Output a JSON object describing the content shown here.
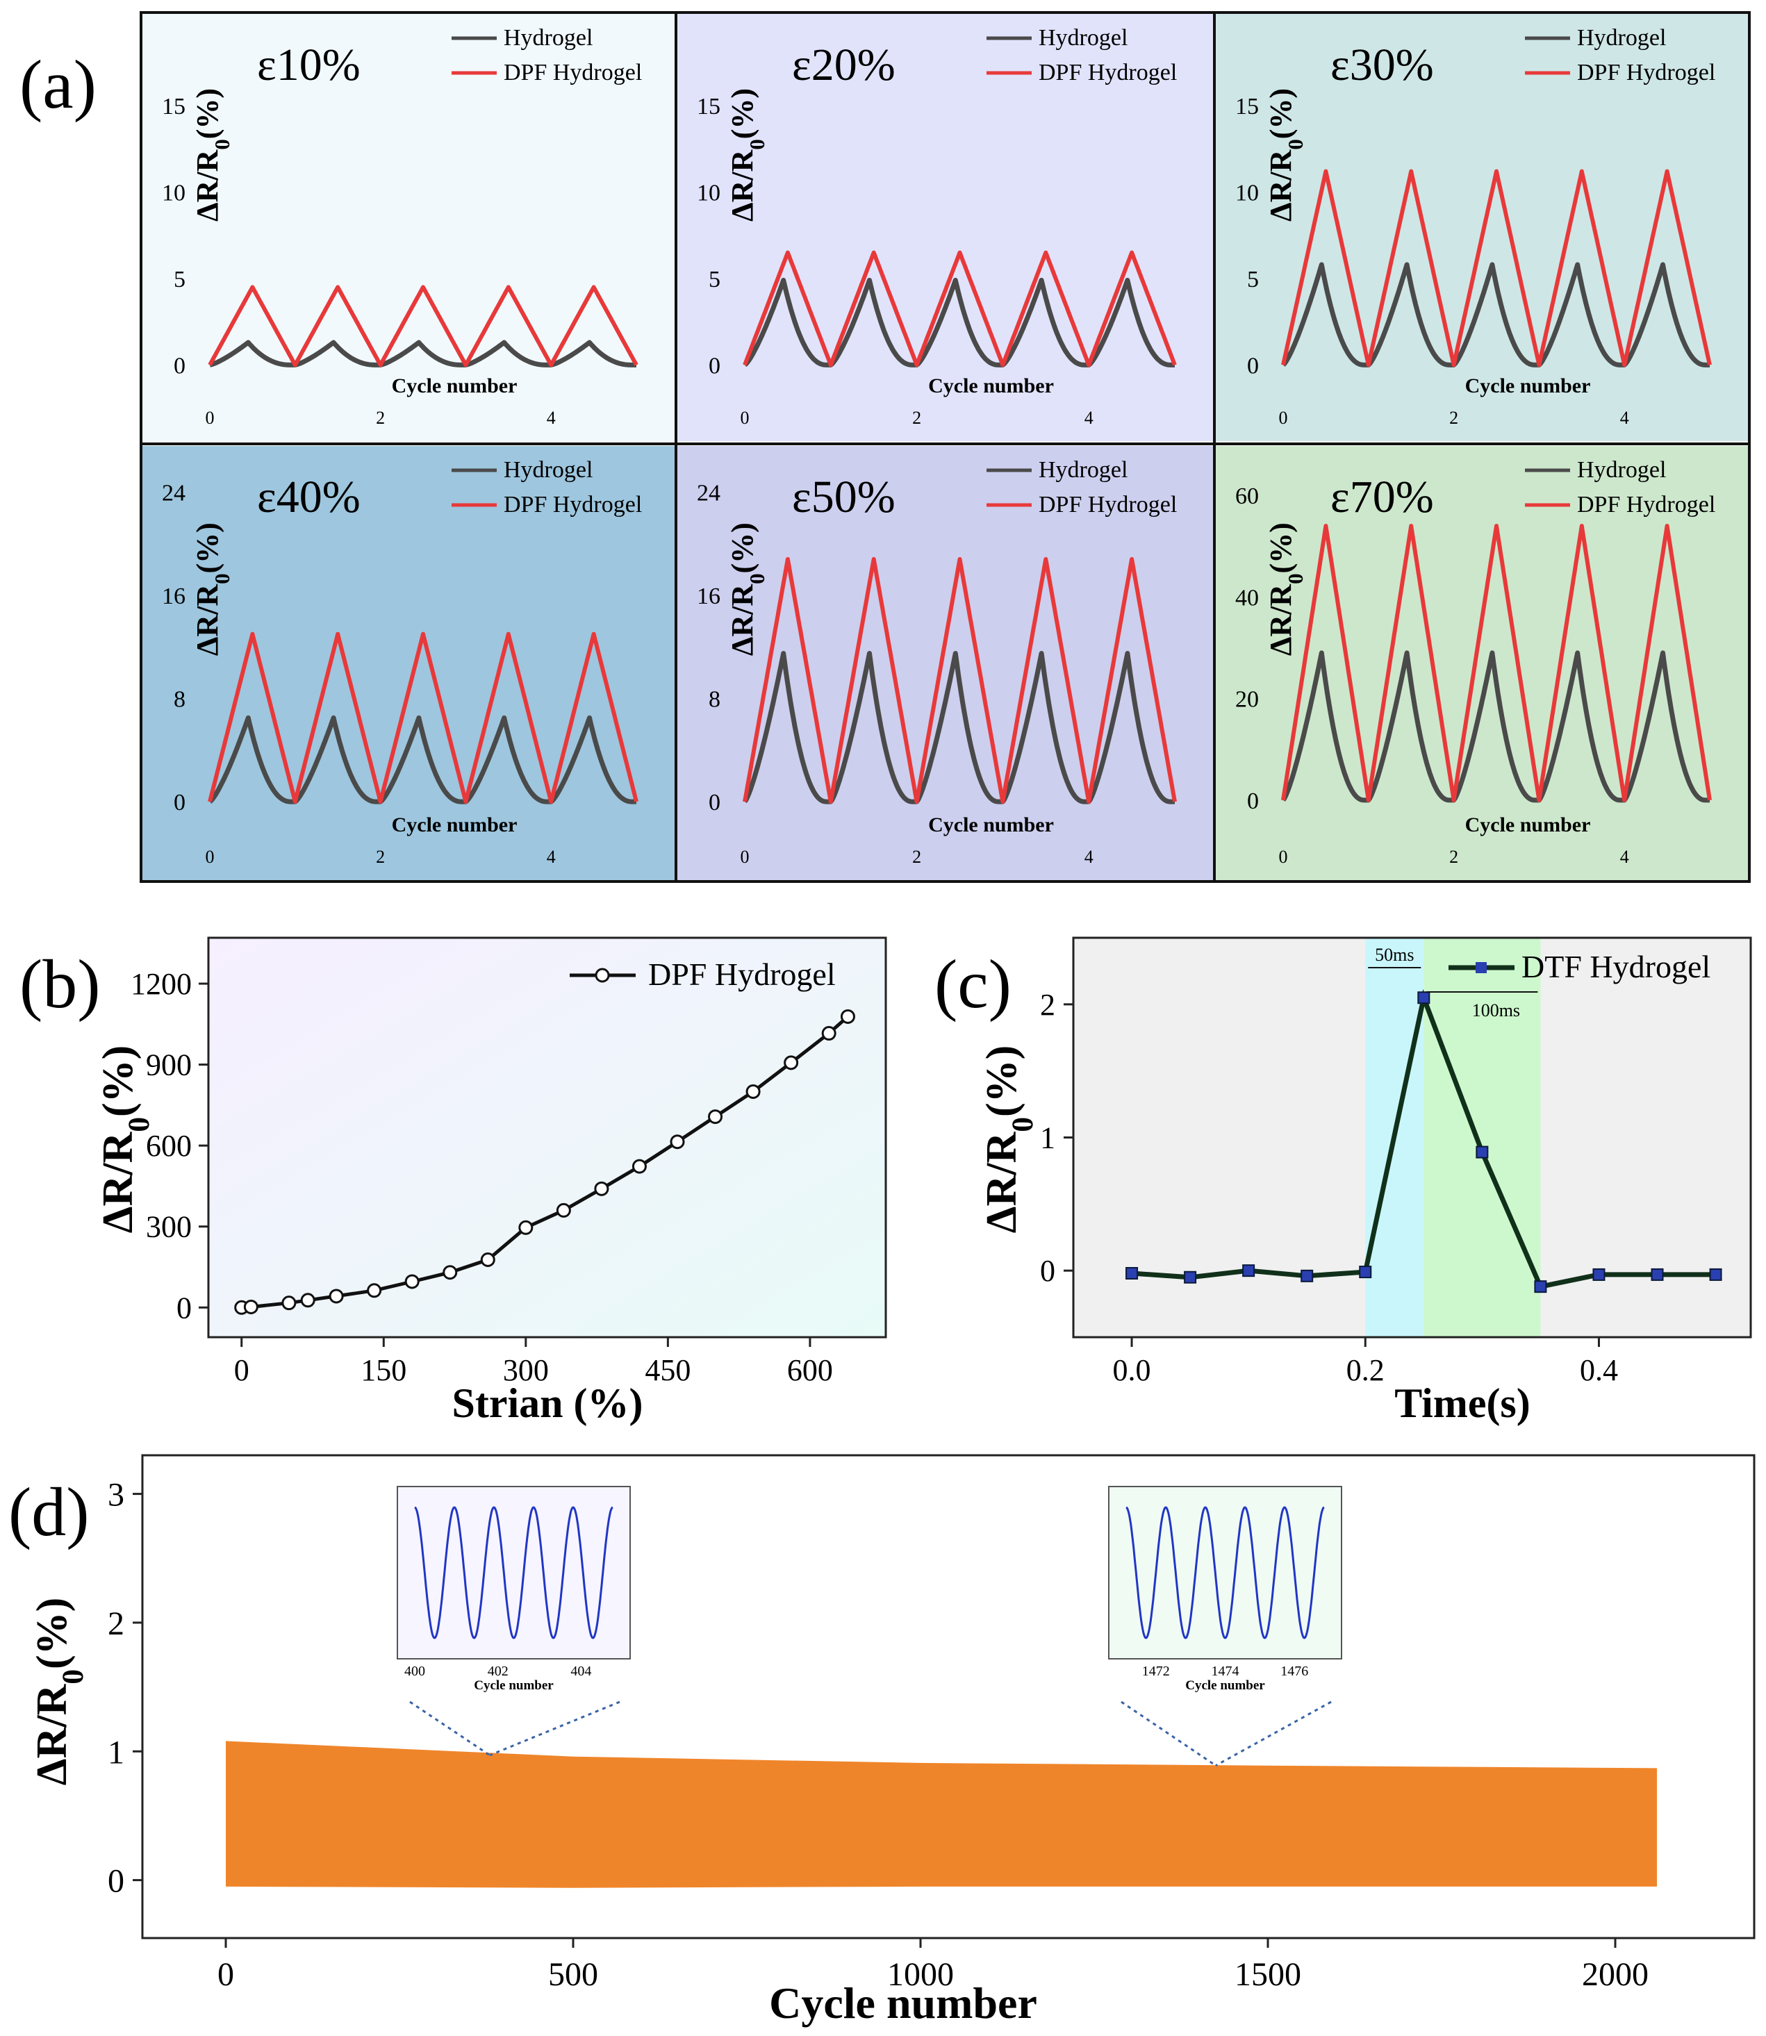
{
  "figure": {
    "panel_labels": {
      "a": "(a)",
      "b": "(b)",
      "c": "(c)",
      "d": "(d)"
    }
  },
  "chart_data": [
    {
      "id": "a1",
      "type": "line",
      "title": "ε10%",
      "bg": "#f1f9fd",
      "xlabel": "Cycle number",
      "ylabel": "ΔR/R₀(%)",
      "xlim": [
        0,
        5
      ],
      "ylim": [
        -3.6,
        19.5
      ],
      "xticks": [
        0,
        2,
        4
      ],
      "yticks": [
        0,
        5,
        10,
        15
      ],
      "series": [
        {
          "name": "Hydrogel",
          "color": "#4a4a4a",
          "peak": 1.3
        },
        {
          "name": "DPF Hydrogel",
          "color": "#e8393a",
          "peak": 4.5
        }
      ]
    },
    {
      "id": "a2",
      "type": "line",
      "title": "ε20%",
      "bg": "#e1e3fb",
      "xlabel": "Cycle number",
      "ylabel": "ΔR/R₀(%)",
      "xlim": [
        0,
        5
      ],
      "ylim": [
        -3.6,
        19.5
      ],
      "xticks": [
        0,
        2,
        4
      ],
      "yticks": [
        0,
        5,
        10,
        15
      ],
      "series": [
        {
          "name": "Hydrogel",
          "color": "#4a4a4a",
          "peak": 4.9
        },
        {
          "name": "DPF Hydrogel",
          "color": "#e8393a",
          "peak": 6.5
        }
      ]
    },
    {
      "id": "a3",
      "type": "line",
      "title": "ε30%",
      "bg": "#cfe6e6",
      "xlabel": "Cycle number",
      "ylabel": "ΔR/R₀(%)",
      "xlim": [
        0,
        5
      ],
      "ylim": [
        -3.6,
        19.5
      ],
      "xticks": [
        0,
        2,
        4
      ],
      "yticks": [
        0,
        5,
        10,
        15
      ],
      "series": [
        {
          "name": "Hydrogel",
          "color": "#4a4a4a",
          "peak": 5.8
        },
        {
          "name": "DPF Hydrogel",
          "color": "#e8393a",
          "peak": 11.2
        }
      ]
    },
    {
      "id": "a4",
      "type": "line",
      "title": "ε40%",
      "bg": "#9ec6de",
      "xlabel": "Cycle number",
      "ylabel": "ΔR/R₀(%)",
      "xlim": [
        0,
        5
      ],
      "ylim": [
        -5,
        26.5
      ],
      "xticks": [
        0,
        2,
        4
      ],
      "yticks": [
        0,
        8,
        16,
        24
      ],
      "series": [
        {
          "name": "Hydrogel",
          "color": "#4a4a4a",
          "peak": 6.5
        },
        {
          "name": "DPF Hydrogel",
          "color": "#e8393a",
          "peak": 13
        }
      ]
    },
    {
      "id": "a5",
      "type": "line",
      "title": "ε50%",
      "bg": "#cdcfee",
      "xlabel": "Cycle number",
      "ylabel": "ΔR/R₀(%)",
      "xlim": [
        0,
        5
      ],
      "ylim": [
        -5,
        26.5
      ],
      "xticks": [
        0,
        2,
        4
      ],
      "yticks": [
        0,
        8,
        16,
        24
      ],
      "series": [
        {
          "name": "Hydrogel",
          "color": "#4a4a4a",
          "peak": 11.5
        },
        {
          "name": "DPF Hydrogel",
          "color": "#e8393a",
          "peak": 18.8
        }
      ]
    },
    {
      "id": "a6",
      "type": "line",
      "title": "ε70%",
      "bg": "#cde7cc",
      "xlabel": "Cycle number",
      "ylabel": "ΔR/R₀(%)",
      "xlim": [
        0,
        5
      ],
      "ylim": [
        -13,
        67
      ],
      "xticks": [
        0,
        2,
        4
      ],
      "yticks": [
        0,
        20,
        40,
        60
      ],
      "series": [
        {
          "name": "Hydrogel",
          "color": "#4a4a4a",
          "peak": 29
        },
        {
          "name": "DPF Hydrogel",
          "color": "#e8393a",
          "peak": 54
        }
      ]
    },
    {
      "id": "b",
      "type": "line",
      "title": "",
      "xlabel": "Strian (%)",
      "ylabel": "ΔR/R₀(%)",
      "xlim": [
        -35,
        680
      ],
      "ylim": [
        -110,
        1370
      ],
      "xticks": [
        0,
        150,
        300,
        450,
        600
      ],
      "yticks": [
        0,
        300,
        600,
        900,
        1200
      ],
      "series": [
        {
          "name": "DPF Hydrogel",
          "color": "#111111",
          "x": [
            0,
            10,
            50,
            70,
            100,
            140,
            180,
            220,
            260,
            300,
            340,
            380,
            420,
            460,
            500,
            540,
            580,
            620,
            640
          ],
          "y": [
            0,
            2,
            17,
            27,
            42,
            63,
            96,
            130,
            177,
            296,
            360,
            440,
            523,
            614,
            707,
            800,
            907,
            1016,
            1078
          ]
        }
      ]
    },
    {
      "id": "c",
      "type": "line",
      "title": "",
      "xlabel": "Time(s)",
      "ylabel": "ΔR/R₀(%)",
      "xlim": [
        -0.05,
        0.53
      ],
      "ylim": [
        -0.5,
        2.5
      ],
      "xticks": [
        0.0,
        0.2,
        0.4
      ],
      "yticks": [
        0,
        1,
        2
      ],
      "annotations": [
        "50ms",
        "100ms"
      ],
      "series": [
        {
          "name": "DTF Hydrogel",
          "color": "#10301a",
          "x": [
            0.0,
            0.05,
            0.1,
            0.15,
            0.2,
            0.25,
            0.3,
            0.35,
            0.4,
            0.45,
            0.5
          ],
          "y": [
            -0.02,
            -0.05,
            0.0,
            -0.04,
            -0.01,
            2.05,
            0.89,
            -0.12,
            -0.03,
            -0.03,
            -0.03
          ]
        }
      ]
    },
    {
      "id": "d",
      "type": "area",
      "title": "",
      "xlabel": "Cycle number",
      "ylabel": "ΔR/R₀(%)",
      "xlim": [
        -120,
        2200
      ],
      "ylim": [
        -0.45,
        3.3
      ],
      "xticks": [
        0,
        500,
        1000,
        1500,
        2000
      ],
      "yticks": [
        0,
        1,
        2,
        3
      ],
      "color": "#ef852a",
      "envelope": {
        "x": [
          0,
          500,
          1000,
          1500,
          2060
        ],
        "upper": [
          1.08,
          0.96,
          0.91,
          0.89,
          0.87
        ],
        "lower": [
          -0.05,
          -0.06,
          -0.05,
          -0.05,
          -0.05
        ]
      },
      "insets": [
        {
          "xticks": [
            400,
            402,
            404
          ],
          "xlabel": "Cycle number",
          "anchor_x": 380,
          "anchor_y": 0.97
        },
        {
          "xticks": [
            1472,
            1474,
            1476
          ],
          "xlabel": "Cycle number",
          "anchor_x": 1425,
          "anchor_y": 0.89
        }
      ]
    }
  ]
}
